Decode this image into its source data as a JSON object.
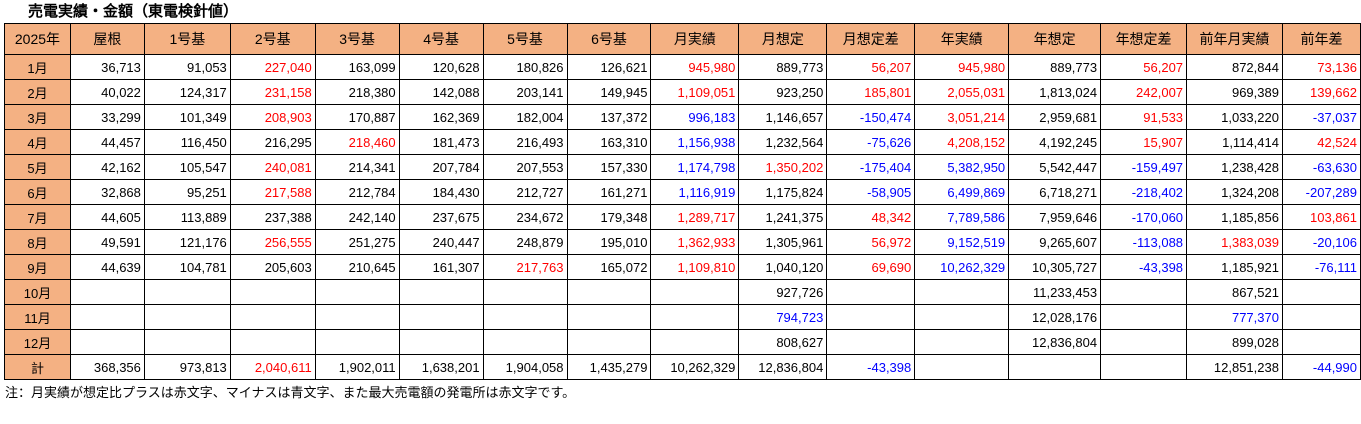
{
  "title": "売電実績・金額（東電検針値）",
  "footnote": "注：月実績が想定比プラスは赤文字、マイナスは青文字、また最大売電額の発電所は赤文字です。",
  "colors": {
    "header_bg": "#F4B183",
    "red_positive": "#FF0000",
    "blue_negative": "#0000FF",
    "text": "#000000",
    "border": "#000000",
    "page_bg": "#FFFFFF"
  },
  "table": {
    "columns": [
      "2025年",
      "屋根",
      "1号基",
      "2号基",
      "3号基",
      "4号基",
      "5号基",
      "6号基",
      "月実績",
      "月想定",
      "月想定差",
      "年実績",
      "年想定",
      "年想定差",
      "前年月実績",
      "前年差"
    ],
    "rows": [
      {
        "label": "1月",
        "values": [
          "36,713",
          "91,053",
          "227,040",
          "163,099",
          "120,628",
          "180,826",
          "126,621",
          "945,980",
          "889,773",
          "56,207",
          "945,980",
          "889,773",
          "56,207",
          "872,844",
          "73,136"
        ],
        "colors": [
          "k",
          "k",
          "r",
          "k",
          "k",
          "k",
          "k",
          "r",
          "k",
          "r",
          "r",
          "k",
          "r",
          "k",
          "r"
        ]
      },
      {
        "label": "2月",
        "values": [
          "40,022",
          "124,317",
          "231,158",
          "218,380",
          "142,088",
          "203,141",
          "149,945",
          "1,109,051",
          "923,250",
          "185,801",
          "2,055,031",
          "1,813,024",
          "242,007",
          "969,389",
          "139,662"
        ],
        "colors": [
          "k",
          "k",
          "r",
          "k",
          "k",
          "k",
          "k",
          "r",
          "k",
          "r",
          "r",
          "k",
          "r",
          "k",
          "r"
        ]
      },
      {
        "label": "3月",
        "values": [
          "33,299",
          "101,349",
          "208,903",
          "170,887",
          "162,369",
          "182,004",
          "137,372",
          "996,183",
          "1,146,657",
          "-150,474",
          "3,051,214",
          "2,959,681",
          "91,533",
          "1,033,220",
          "-37,037"
        ],
        "colors": [
          "k",
          "k",
          "r",
          "k",
          "k",
          "k",
          "k",
          "b",
          "k",
          "b",
          "r",
          "k",
          "r",
          "k",
          "b"
        ]
      },
      {
        "label": "4月",
        "values": [
          "44,457",
          "116,450",
          "216,295",
          "218,460",
          "181,473",
          "216,493",
          "163,310",
          "1,156,938",
          "1,232,564",
          "-75,626",
          "4,208,152",
          "4,192,245",
          "15,907",
          "1,114,414",
          "42,524"
        ],
        "colors": [
          "k",
          "k",
          "k",
          "r",
          "k",
          "k",
          "k",
          "b",
          "k",
          "b",
          "r",
          "k",
          "r",
          "k",
          "r"
        ]
      },
      {
        "label": "5月",
        "values": [
          "42,162",
          "105,547",
          "240,081",
          "214,341",
          "207,784",
          "207,553",
          "157,330",
          "1,174,798",
          "1,350,202",
          "-175,404",
          "5,382,950",
          "5,542,447",
          "-159,497",
          "1,238,428",
          "-63,630"
        ],
        "colors": [
          "k",
          "k",
          "r",
          "k",
          "k",
          "k",
          "k",
          "b",
          "r",
          "b",
          "b",
          "k",
          "b",
          "k",
          "b"
        ]
      },
      {
        "label": "6月",
        "values": [
          "32,868",
          "95,251",
          "217,588",
          "212,784",
          "184,430",
          "212,727",
          "161,271",
          "1,116,919",
          "1,175,824",
          "-58,905",
          "6,499,869",
          "6,718,271",
          "-218,402",
          "1,324,208",
          "-207,289"
        ],
        "colors": [
          "k",
          "k",
          "r",
          "k",
          "k",
          "k",
          "k",
          "b",
          "k",
          "b",
          "b",
          "k",
          "b",
          "k",
          "b"
        ]
      },
      {
        "label": "7月",
        "values": [
          "44,605",
          "113,889",
          "237,388",
          "242,140",
          "237,675",
          "234,672",
          "179,348",
          "1,289,717",
          "1,241,375",
          "48,342",
          "7,789,586",
          "7,959,646",
          "-170,060",
          "1,185,856",
          "103,861"
        ],
        "colors": [
          "k",
          "k",
          "k",
          "k",
          "k",
          "k",
          "k",
          "r",
          "k",
          "r",
          "b",
          "k",
          "b",
          "k",
          "r"
        ]
      },
      {
        "label": "8月",
        "values": [
          "49,591",
          "121,176",
          "256,555",
          "251,275",
          "240,447",
          "248,879",
          "195,010",
          "1,362,933",
          "1,305,961",
          "56,972",
          "9,152,519",
          "9,265,607",
          "-113,088",
          "1,383,039",
          "-20,106"
        ],
        "colors": [
          "k",
          "k",
          "r",
          "k",
          "k",
          "k",
          "k",
          "r",
          "k",
          "r",
          "b",
          "k",
          "b",
          "r",
          "b"
        ]
      },
      {
        "label": "9月",
        "values": [
          "44,639",
          "104,781",
          "205,603",
          "210,645",
          "161,307",
          "217,763",
          "165,072",
          "1,109,810",
          "1,040,120",
          "69,690",
          "10,262,329",
          "10,305,727",
          "-43,398",
          "1,185,921",
          "-76,111"
        ],
        "colors": [
          "k",
          "k",
          "k",
          "k",
          "k",
          "r",
          "k",
          "r",
          "k",
          "r",
          "b",
          "k",
          "b",
          "k",
          "b"
        ]
      },
      {
        "label": "10月",
        "values": [
          "",
          "",
          "",
          "",
          "",
          "",
          "",
          "",
          "927,726",
          "",
          "",
          "11,233,453",
          "",
          "867,521",
          ""
        ],
        "colors": [
          "k",
          "k",
          "k",
          "k",
          "k",
          "k",
          "k",
          "k",
          "k",
          "k",
          "k",
          "k",
          "k",
          "k",
          "k"
        ]
      },
      {
        "label": "11月",
        "values": [
          "",
          "",
          "",
          "",
          "",
          "",
          "",
          "",
          "794,723",
          "",
          "",
          "12,028,176",
          "",
          "777,370",
          ""
        ],
        "colors": [
          "k",
          "k",
          "k",
          "k",
          "k",
          "k",
          "k",
          "k",
          "b",
          "k",
          "k",
          "k",
          "k",
          "b",
          "k"
        ]
      },
      {
        "label": "12月",
        "values": [
          "",
          "",
          "",
          "",
          "",
          "",
          "",
          "",
          "808,627",
          "",
          "",
          "12,836,804",
          "",
          "899,028",
          ""
        ],
        "colors": [
          "k",
          "k",
          "k",
          "k",
          "k",
          "k",
          "k",
          "k",
          "k",
          "k",
          "k",
          "k",
          "k",
          "k",
          "k"
        ]
      },
      {
        "label": "計",
        "values": [
          "368,356",
          "973,813",
          "2,040,611",
          "1,902,011",
          "1,638,201",
          "1,904,058",
          "1,435,279",
          "10,262,329",
          "12,836,804",
          "-43,398",
          "",
          "",
          "",
          "12,851,238",
          "-44,990"
        ],
        "colors": [
          "k",
          "k",
          "r",
          "k",
          "k",
          "k",
          "k",
          "k",
          "k",
          "b",
          "k",
          "k",
          "k",
          "k",
          "b"
        ]
      }
    ]
  }
}
